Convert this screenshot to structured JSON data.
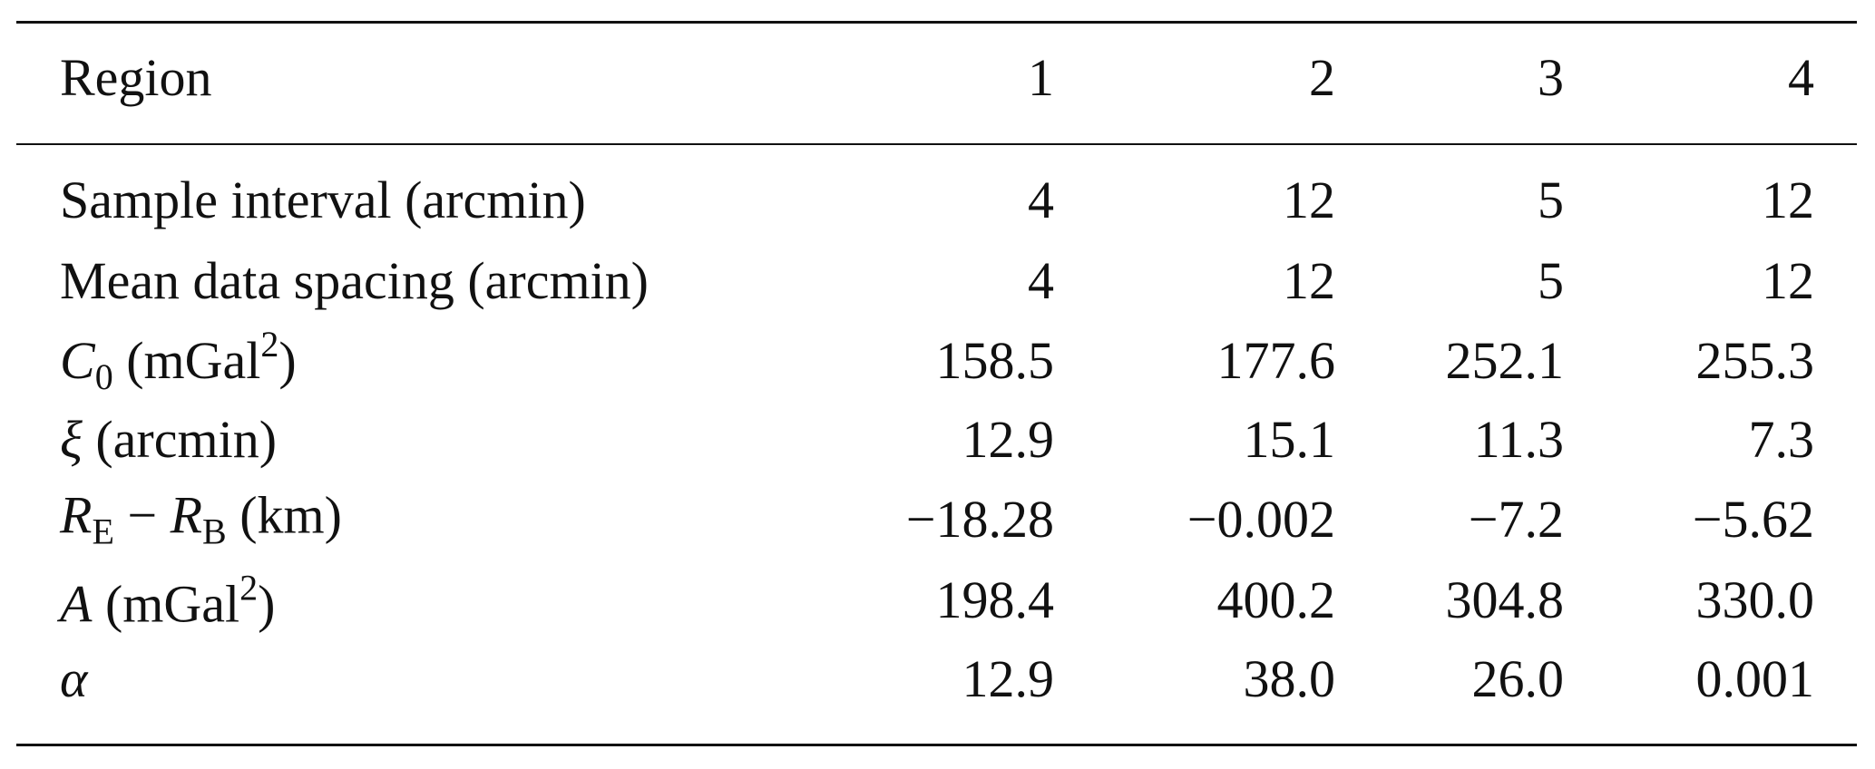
{
  "table": {
    "header": [
      "Region",
      "1",
      "2",
      "3",
      "4"
    ],
    "rows": [
      {
        "label": [
          {
            "text": "Sample interval (arcmin)",
            "style": "normal"
          }
        ],
        "values": [
          "4",
          "12",
          "5",
          "12"
        ]
      },
      {
        "label": [
          {
            "text": "Mean data spacing (arcmin)",
            "style": "normal"
          }
        ],
        "values": [
          "4",
          "12",
          "5",
          "12"
        ]
      },
      {
        "label": [
          {
            "text": "C",
            "style": "italic"
          },
          {
            "text": "0",
            "style": "sub"
          },
          {
            "text": " (mGal",
            "style": "normal"
          },
          {
            "text": "2",
            "style": "sup"
          },
          {
            "text": ")",
            "style": "normal"
          }
        ],
        "values": [
          "158.5",
          "177.6",
          "252.1",
          "255.3"
        ]
      },
      {
        "label": [
          {
            "text": "ξ",
            "style": "italic"
          },
          {
            "text": " (arcmin)",
            "style": "normal"
          }
        ],
        "values": [
          "12.9",
          "15.1",
          "11.3",
          "7.3"
        ]
      },
      {
        "label": [
          {
            "text": "R",
            "style": "italic"
          },
          {
            "text": "E",
            "style": "sub"
          },
          {
            "text": " − ",
            "style": "normal"
          },
          {
            "text": "R",
            "style": "italic"
          },
          {
            "text": "B",
            "style": "sub"
          },
          {
            "text": " (km)",
            "style": "normal"
          }
        ],
        "values": [
          "−18.28",
          "−0.002",
          "−7.2",
          "−5.62"
        ]
      },
      {
        "label": [
          {
            "text": "A",
            "style": "italic"
          },
          {
            "text": " (mGal",
            "style": "normal"
          },
          {
            "text": "2",
            "style": "sup"
          },
          {
            "text": ")",
            "style": "normal"
          }
        ],
        "values": [
          "198.4",
          "400.2",
          "304.8",
          "330.0"
        ]
      },
      {
        "label": [
          {
            "text": "α",
            "style": "italic"
          }
        ],
        "values": [
          "12.9",
          "38.0",
          "26.0",
          "0.001"
        ]
      }
    ]
  }
}
